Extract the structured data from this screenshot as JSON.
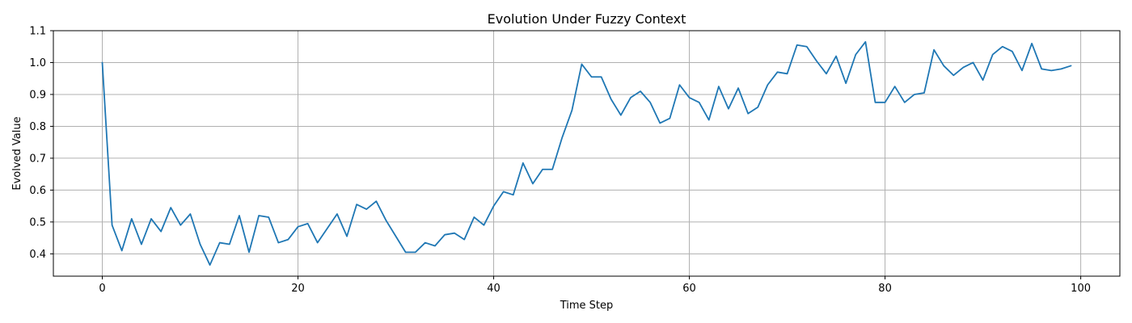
{
  "chart_data": {
    "type": "line",
    "title": "Evolution Under Fuzzy Context",
    "xlabel": "Time Step",
    "ylabel": "Evolved Value",
    "xlim": [
      -5,
      104
    ],
    "ylim": [
      0.33,
      1.1
    ],
    "xticks": [
      0,
      20,
      40,
      60,
      80,
      100
    ],
    "yticks": [
      0.4,
      0.5,
      0.6,
      0.7,
      0.8,
      0.9,
      1.0,
      1.1
    ],
    "xtick_labels": [
      "0",
      "20",
      "40",
      "60",
      "80",
      "100"
    ],
    "ytick_labels": [
      "0.4",
      "0.5",
      "0.6",
      "0.7",
      "0.8",
      "0.9",
      "1.0",
      "1.1"
    ],
    "grid": true,
    "colors": {
      "series": "#1f77b4",
      "grid": "#b0b0b0"
    },
    "series": [
      {
        "x": [
          0,
          1,
          2,
          3,
          4,
          5,
          6,
          7,
          8,
          9,
          10,
          11,
          12,
          13,
          14,
          15,
          16,
          17,
          18,
          19,
          20,
          21,
          22,
          23,
          24,
          25,
          26,
          27,
          28,
          29,
          30,
          31,
          32,
          33,
          34,
          35,
          36,
          37,
          38,
          39,
          40,
          41,
          42,
          43,
          44,
          45,
          46,
          47,
          48,
          49,
          50,
          51,
          52,
          53,
          54,
          55,
          56,
          57,
          58,
          59,
          60,
          61,
          62,
          63,
          64,
          65,
          66,
          67,
          68,
          69,
          70,
          71,
          72,
          73,
          74,
          75,
          76,
          77,
          78,
          79,
          80,
          81,
          82,
          83,
          84,
          85,
          86,
          87,
          88,
          89,
          90,
          91,
          92,
          93,
          94,
          95,
          96,
          97,
          98,
          99
        ],
        "values": [
          1.0,
          0.49,
          0.41,
          0.51,
          0.43,
          0.51,
          0.47,
          0.545,
          0.49,
          0.525,
          0.43,
          0.365,
          0.435,
          0.43,
          0.52,
          0.405,
          0.52,
          0.515,
          0.435,
          0.445,
          0.485,
          0.495,
          0.435,
          0.48,
          0.525,
          0.455,
          0.555,
          0.54,
          0.565,
          0.505,
          0.455,
          0.405,
          0.405,
          0.435,
          0.425,
          0.46,
          0.465,
          0.445,
          0.515,
          0.49,
          0.55,
          0.595,
          0.585,
          0.685,
          0.62,
          0.665,
          0.665,
          0.765,
          0.85,
          0.995,
          0.955,
          0.955,
          0.885,
          0.835,
          0.89,
          0.91,
          0.875,
          0.81,
          0.825,
          0.93,
          0.89,
          0.875,
          0.82,
          0.925,
          0.855,
          0.92,
          0.84,
          0.86,
          0.93,
          0.97,
          0.965,
          1.055,
          1.05,
          1.005,
          0.965,
          1.02,
          0.935,
          1.025,
          1.065,
          0.875,
          0.875,
          0.925,
          0.875,
          0.9,
          0.905,
          1.04,
          0.99,
          0.96,
          0.985,
          1.0,
          0.945,
          1.025,
          1.05,
          1.035,
          0.975,
          1.06,
          0.98,
          0.975,
          0.98,
          0.99
        ]
      }
    ]
  }
}
